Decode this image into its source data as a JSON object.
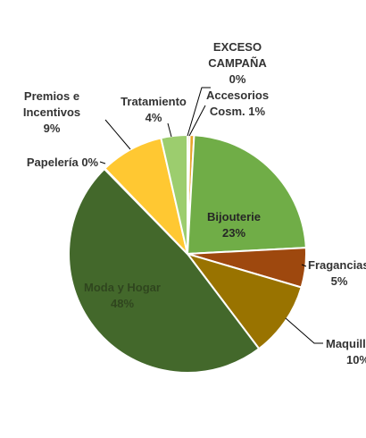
{
  "chart_data": {
    "type": "pie",
    "title": "",
    "slices": [
      {
        "name": "EXCESO CAMPAÑA",
        "lines": [
          "EXCESO",
          "CAMPAÑA"
        ],
        "pct_label": "0%",
        "value": 0.3,
        "color": "#f5d49a"
      },
      {
        "name": "Accesorios Cosm.",
        "lines": [
          "Accesorios",
          "Cosm. 1%"
        ],
        "pct_label": "",
        "value": 0.6,
        "color": "#e7a52a"
      },
      {
        "name": "Bijouterie",
        "lines": [
          "Bijouterie"
        ],
        "pct_label": "23%",
        "value": 23.4,
        "color": "#70ad47"
      },
      {
        "name": "Fragancias",
        "lines": [
          "Fragancias"
        ],
        "pct_label": "5%",
        "value": 5.4,
        "color": "#9e480e"
      },
      {
        "name": "Maquillaje",
        "lines": [
          "Maquill"
        ],
        "pct_label": "10%",
        "value": 10.2,
        "color": "#997300"
      },
      {
        "name": "Moda y Hogar",
        "lines": [
          "Moda y Hogar"
        ],
        "pct_label": "48%",
        "value": 48.2,
        "color": "#43682b"
      },
      {
        "name": "Papelería",
        "lines": [
          "Papelería 0%"
        ],
        "pct_label": "",
        "value": 0.1,
        "color": "#ffffff"
      },
      {
        "name": "Premios e Incentivos",
        "lines": [
          "Premios e",
          "Incentivos"
        ],
        "pct_label": "9%",
        "value": 8.7,
        "color": "#ffc832"
      },
      {
        "name": "Tratamiento",
        "lines": [
          "Tratamiento"
        ],
        "pct_label": "4%",
        "value": 3.6,
        "color": "#9ccd6e"
      }
    ]
  }
}
